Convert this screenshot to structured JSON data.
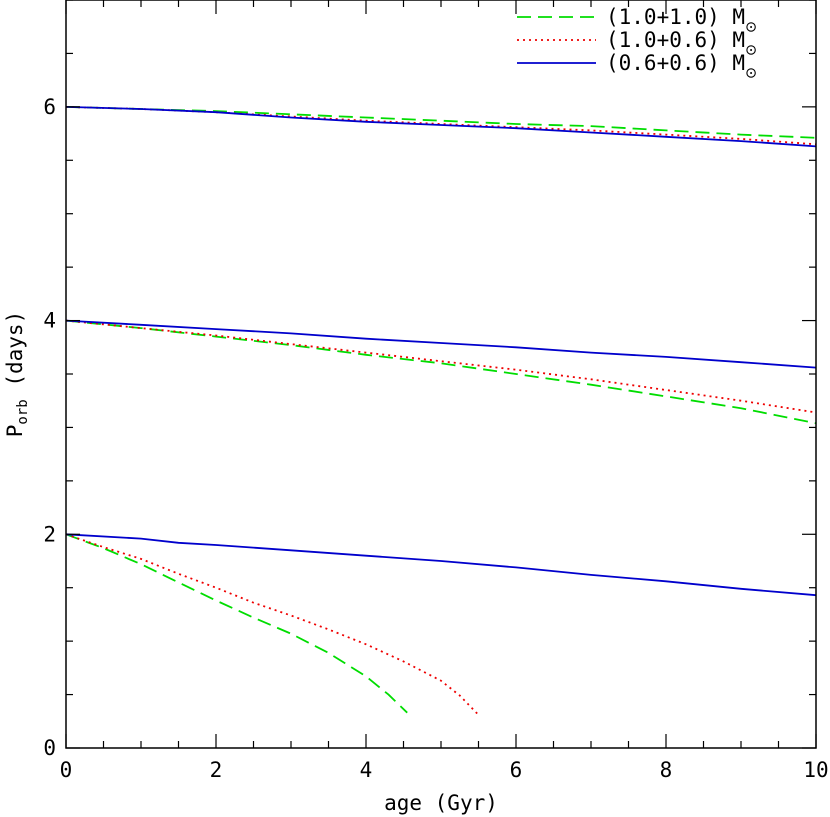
{
  "chart_data": {
    "type": "line",
    "xlabel": "age (Gyr)",
    "ylabel_main": "P",
    "ylabel_sub": "orb",
    "ylabel_tail": " (days)",
    "xlim": [
      0,
      10
    ],
    "ylim": [
      0,
      7
    ],
    "x_ticks": [
      0,
      2,
      4,
      6,
      8,
      10
    ],
    "x_tick_labels": [
      "0",
      "2",
      "4",
      "6",
      "8",
      "10"
    ],
    "y_ticks": [
      0,
      2,
      4,
      6
    ],
    "y_tick_labels": [
      "0",
      "2",
      "4",
      "6"
    ],
    "grid": false,
    "legend_position": "top-right",
    "legend": [
      {
        "label": "(1.0+1.0) M",
        "color": "#00dd00",
        "style": "dashed"
      },
      {
        "label": "(1.0+0.6) M",
        "color": "#ee0000",
        "style": "dotted"
      },
      {
        "label": "(0.6+0.6) M",
        "color": "#0000cc",
        "style": "solid"
      }
    ],
    "series": [
      {
        "group": "1.0+1.0",
        "color": "#00dd00",
        "style": "dashed",
        "x": [
          0,
          1,
          2,
          3,
          4,
          5,
          6,
          7,
          8,
          9,
          10
        ],
        "y": [
          6.0,
          5.98,
          5.96,
          5.93,
          5.9,
          5.87,
          5.84,
          5.82,
          5.78,
          5.74,
          5.71
        ]
      },
      {
        "group": "1.0+0.6",
        "color": "#ee0000",
        "style": "dotted",
        "x": [
          0,
          1,
          2,
          3,
          4,
          5,
          6,
          7,
          8,
          9,
          10
        ],
        "y": [
          6.0,
          5.98,
          5.95,
          5.91,
          5.87,
          5.84,
          5.81,
          5.78,
          5.74,
          5.7,
          5.65
        ]
      },
      {
        "group": "0.6+0.6",
        "color": "#0000cc",
        "style": "solid",
        "x": [
          0,
          1,
          2,
          3,
          4,
          5,
          6,
          7,
          8,
          9,
          10
        ],
        "y": [
          6.0,
          5.98,
          5.95,
          5.9,
          5.86,
          5.83,
          5.8,
          5.76,
          5.72,
          5.68,
          5.63
        ]
      },
      {
        "group": "1.0+1.0",
        "color": "#00dd00",
        "style": "dashed",
        "x": [
          0,
          1,
          2,
          3,
          4,
          5,
          6,
          7,
          8,
          9,
          10
        ],
        "y": [
          4.0,
          3.93,
          3.85,
          3.77,
          3.68,
          3.6,
          3.5,
          3.4,
          3.29,
          3.18,
          3.04
        ]
      },
      {
        "group": "1.0+0.6",
        "color": "#ee0000",
        "style": "dotted",
        "x": [
          0,
          1,
          2,
          3,
          4,
          5,
          6,
          7,
          8,
          9,
          10
        ],
        "y": [
          4.0,
          3.93,
          3.86,
          3.78,
          3.7,
          3.62,
          3.54,
          3.45,
          3.35,
          3.25,
          3.14
        ]
      },
      {
        "group": "0.6+0.6",
        "color": "#0000cc",
        "style": "solid",
        "x": [
          0,
          1,
          2,
          3,
          4,
          5,
          6,
          7,
          8,
          9,
          10
        ],
        "y": [
          4.0,
          3.96,
          3.92,
          3.88,
          3.83,
          3.79,
          3.75,
          3.7,
          3.66,
          3.61,
          3.56
        ]
      },
      {
        "group": "1.0+1.0",
        "color": "#00dd00",
        "style": "dashed",
        "x": [
          0,
          0.5,
          1,
          1.5,
          2,
          2.5,
          3,
          3.5,
          4,
          4.3,
          4.55
        ],
        "y": [
          2.0,
          1.87,
          1.72,
          1.55,
          1.38,
          1.22,
          1.07,
          0.89,
          0.67,
          0.5,
          0.33
        ]
      },
      {
        "group": "1.0+0.6",
        "color": "#ee0000",
        "style": "dotted",
        "x": [
          0,
          0.5,
          1,
          1.5,
          2,
          2.5,
          3,
          3.5,
          4,
          4.5,
          5,
          5.25,
          5.5
        ],
        "y": [
          2.0,
          1.88,
          1.77,
          1.63,
          1.5,
          1.36,
          1.24,
          1.11,
          0.97,
          0.81,
          0.63,
          0.49,
          0.31
        ]
      },
      {
        "group": "0.6+0.6",
        "color": "#0000cc",
        "style": "solid",
        "x": [
          0,
          1,
          1.5,
          2,
          3,
          4,
          5,
          6,
          7,
          8,
          9,
          10
        ],
        "y": [
          2.0,
          1.96,
          1.92,
          1.9,
          1.85,
          1.8,
          1.75,
          1.69,
          1.62,
          1.56,
          1.49,
          1.43
        ]
      }
    ]
  }
}
